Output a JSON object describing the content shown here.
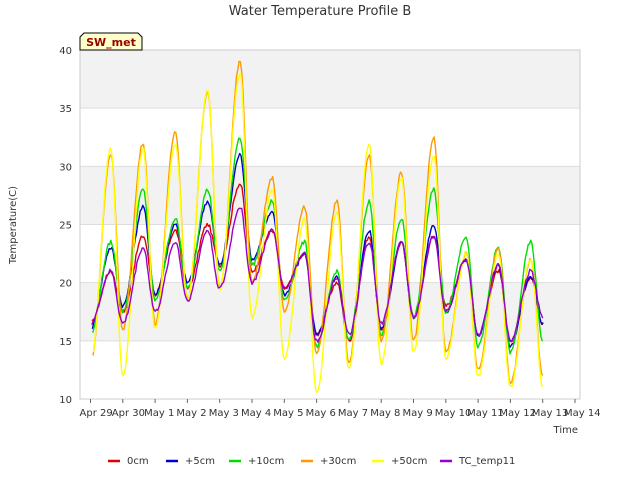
{
  "chart_data": {
    "type": "line",
    "title": "Water Temperature Profile B",
    "xlabel": "Time",
    "ylabel": "Temperature(C)",
    "station_label": "SW_met",
    "x_ticks": [
      "Apr 29",
      "Apr 30",
      "May 1",
      "May 2",
      "May 3",
      "May 4",
      "May 5",
      "May 6",
      "May 7",
      "May 8",
      "May 9",
      "May 10",
      "May 11",
      "May 12",
      "May 13",
      "May 14"
    ],
    "y_ticks": [
      10,
      15,
      20,
      25,
      30,
      35,
      40
    ],
    "xlim_days": [
      0,
      15
    ],
    "ylim": [
      10,
      40
    ],
    "grid": "horizontal bands",
    "legend_position": "bottom",
    "colors": {
      "0cm": "#dd0000",
      "+5cm": "#0000cc",
      "+10cm": "#00dd00",
      "+30cm": "#ff9900",
      "+50cm": "#ffff00",
      "TC_temp11": "#9900cc",
      "band": "#f2f2f2",
      "station_label_bg": "#ffffcc",
      "station_label_text": "#990000"
    },
    "day_positions": [
      0,
      1,
      2,
      3,
      4,
      5,
      6,
      7,
      8,
      9,
      10,
      11,
      12,
      13,
      14
    ],
    "series": [
      {
        "name": "0cm",
        "mins": [
          16.5,
          17.5,
          19.0,
          19.5,
          21.5,
          21.0,
          19.5,
          15.5,
          15.0,
          16.0,
          17.0,
          18.0,
          15.5,
          15.0,
          16.5
        ],
        "maxs": [
          null,
          21.0,
          24.0,
          24.5,
          25.0,
          28.5,
          24.5,
          22.5,
          20.0,
          24.0,
          23.5,
          24.0,
          22.0,
          21.0,
          20.5
        ]
      },
      {
        "name": "+5cm",
        "mins": [
          16.0,
          18.0,
          19.0,
          20.0,
          21.5,
          22.0,
          19.0,
          15.5,
          15.0,
          16.0,
          17.0,
          17.5,
          15.5,
          14.5,
          16.5
        ],
        "maxs": [
          null,
          23.0,
          26.5,
          25.0,
          27.0,
          31.0,
          26.0,
          22.5,
          20.5,
          24.5,
          23.5,
          25.0,
          22.0,
          21.5,
          20.5
        ]
      },
      {
        "name": "+10cm",
        "mins": [
          15.5,
          17.5,
          18.5,
          19.5,
          21.0,
          21.5,
          18.5,
          14.5,
          15.0,
          15.5,
          17.0,
          17.5,
          14.5,
          14.0,
          15.0
        ],
        "maxs": [
          null,
          23.5,
          28.0,
          25.5,
          28.0,
          32.5,
          27.0,
          23.5,
          21.0,
          27.0,
          25.5,
          28.0,
          24.0,
          23.0,
          23.5
        ]
      },
      {
        "name": "+30cm",
        "mins": [
          13.0,
          16.0,
          16.5,
          18.5,
          19.5,
          20.0,
          17.5,
          14.0,
          13.0,
          15.0,
          15.0,
          14.0,
          12.5,
          11.5,
          12.0
        ],
        "maxs": [
          null,
          31.0,
          32.0,
          33.0,
          36.5,
          39.0,
          29.0,
          26.5,
          27.0,
          31.0,
          29.5,
          32.5,
          22.5,
          23.0,
          22.0
        ]
      },
      {
        "name": "+50cm",
        "mins": [
          13.0,
          12.0,
          16.0,
          18.5,
          19.5,
          17.0,
          13.5,
          10.5,
          12.5,
          13.0,
          14.0,
          13.5,
          12.0,
          11.0,
          11.0
        ],
        "maxs": [
          null,
          31.5,
          31.5,
          32.0,
          36.5,
          38.0,
          28.0,
          25.5,
          26.0,
          32.0,
          29.0,
          31.0,
          22.5,
          22.5,
          22.0
        ]
      },
      {
        "name": "TC_temp11",
        "mins": [
          16.5,
          16.5,
          17.5,
          18.5,
          19.5,
          20.0,
          19.5,
          15.0,
          15.5,
          16.5,
          17.0,
          17.5,
          15.5,
          15.0,
          17.0
        ],
        "maxs": [
          null,
          21.0,
          23.0,
          23.5,
          24.5,
          26.5,
          24.5,
          22.5,
          20.5,
          23.5,
          23.5,
          24.0,
          22.0,
          21.5,
          21.0
        ]
      }
    ]
  }
}
